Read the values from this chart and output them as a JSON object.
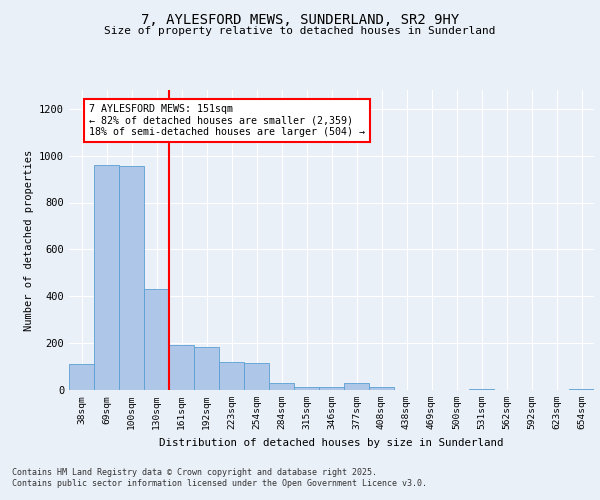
{
  "title_line1": "7, AYLESFORD MEWS, SUNDERLAND, SR2 9HY",
  "title_line2": "Size of property relative to detached houses in Sunderland",
  "xlabel": "Distribution of detached houses by size in Sunderland",
  "ylabel": "Number of detached properties",
  "categories": [
    "38sqm",
    "69sqm",
    "100sqm",
    "130sqm",
    "161sqm",
    "192sqm",
    "223sqm",
    "254sqm",
    "284sqm",
    "315sqm",
    "346sqm",
    "377sqm",
    "408sqm",
    "438sqm",
    "469sqm",
    "500sqm",
    "531sqm",
    "562sqm",
    "592sqm",
    "623sqm",
    "654sqm"
  ],
  "values": [
    110,
    960,
    955,
    430,
    190,
    185,
    120,
    115,
    28,
    12,
    12,
    28,
    12,
    0,
    0,
    0,
    4,
    0,
    0,
    0,
    4
  ],
  "bar_color": "#aec6e8",
  "bar_edge_color": "#5a9fd4",
  "annotation_line1": "7 AYLESFORD MEWS: 151sqm",
  "annotation_line2": "← 82% of detached houses are smaller (2,359)",
  "annotation_line3": "18% of semi-detached houses are larger (504) →",
  "annotation_box_color": "white",
  "annotation_box_edge": "red",
  "vline_color": "red",
  "vline_x": 3.5,
  "ylim": [
    0,
    1280
  ],
  "yticks": [
    0,
    200,
    400,
    600,
    800,
    1000,
    1200
  ],
  "footer_line1": "Contains HM Land Registry data © Crown copyright and database right 2025.",
  "footer_line2": "Contains public sector information licensed under the Open Government Licence v3.0.",
  "background_color": "#eaf0f8",
  "plot_bg_color": "#eaf0f8"
}
